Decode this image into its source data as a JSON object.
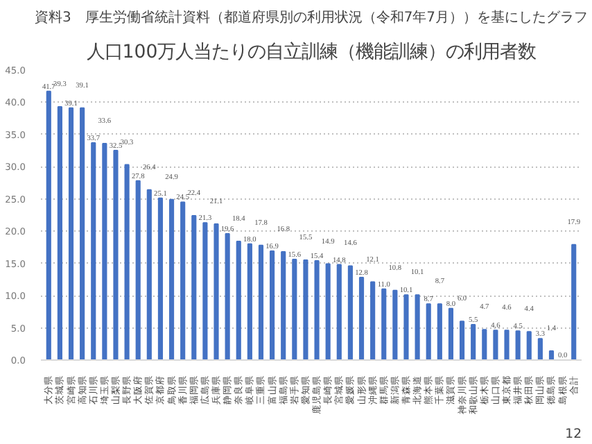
{
  "chart_data": {
    "type": "bar",
    "title": "人口100万人当たりの自立訓練（機能訓練）の利用者数",
    "subtitle": "資料3　厚生労働省統計資料（都道府県別の利用状況（令和7年7月））を基にしたグラフ",
    "categories": [
      "大分県",
      "茨城県",
      "宮崎県",
      "高知県",
      "石川県",
      "埼玉県",
      "山梨県",
      "長野県",
      "大阪府",
      "佐賀県",
      "京都府",
      "鳥取県",
      "香川県",
      "福岡県",
      "広島県",
      "兵庫県",
      "静岡県",
      "奈良県",
      "岐阜県",
      "三重県",
      "富山県",
      "福島県",
      "岩手県",
      "愛知県",
      "鹿児島県",
      "長崎県",
      "宮城県",
      "愛媛県",
      "山形県",
      "沖縄県",
      "群馬県",
      "新潟県",
      "青森県",
      "北海道",
      "熊本県",
      "千葉県",
      "滋賀県",
      "神奈川県",
      "和歌山県",
      "栃木県",
      "山口県",
      "東京都",
      "福井県",
      "秋田県",
      "岡山県",
      "徳島県",
      "島根県",
      "合計"
    ],
    "values": [
      41.7,
      39.3,
      39.1,
      39.1,
      33.7,
      33.6,
      32.5,
      30.3,
      27.8,
      26.4,
      25.1,
      24.9,
      24.5,
      22.4,
      21.3,
      21.1,
      19.6,
      18.4,
      18.0,
      17.8,
      16.9,
      16.8,
      15.6,
      15.5,
      15.4,
      14.9,
      14.8,
      14.6,
      12.8,
      12.1,
      11.0,
      10.8,
      10.1,
      10.1,
      8.7,
      8.7,
      8.0,
      6.0,
      5.5,
      4.7,
      4.6,
      4.6,
      4.5,
      4.4,
      3.3,
      1.4,
      0.0,
      17.9
    ],
    "color": "#4472c4",
    "value_labels": [
      "41.7",
      "39.3",
      "39.1",
      "39.1",
      "33.7",
      "33.6",
      "32.5",
      "30.3",
      "27.8",
      "26.4",
      "25.1",
      "24.9",
      "24.5",
      "22.4",
      "21.3",
      "21.1",
      "19.6",
      "18.4",
      "18.0",
      "17.8",
      "16.9",
      "16.8",
      "15.6",
      "15.5",
      "15.4",
      "14.9",
      "14.8",
      "14.6",
      "12.8",
      "12.1",
      "11.0",
      "10.8",
      "10.1",
      "10.1",
      "8.7",
      "8.7",
      "8.0",
      "6.0",
      "5.5",
      "4.7",
      "4.6",
      "4.6",
      "4.5",
      "4.4",
      "3.3",
      "1.4",
      "0.0",
      "17.9"
    ],
    "ylim": [
      0,
      45
    ],
    "yticks": [
      {
        "value": 0,
        "label": "0.0"
      },
      {
        "value": 5,
        "label": "5.0"
      },
      {
        "value": 10,
        "label": "10.0"
      },
      {
        "value": 15,
        "label": "15.0"
      },
      {
        "value": 20,
        "label": "20.0"
      },
      {
        "value": 25,
        "label": "25.0"
      },
      {
        "value": 30,
        "label": "30.0"
      },
      {
        "value": 35,
        "label": "35.0"
      },
      {
        "value": 40,
        "label": "40.0"
      },
      {
        "value": 45,
        "label": "45.0"
      }
    ],
    "grid": "y",
    "annotations": [
      "12"
    ]
  }
}
